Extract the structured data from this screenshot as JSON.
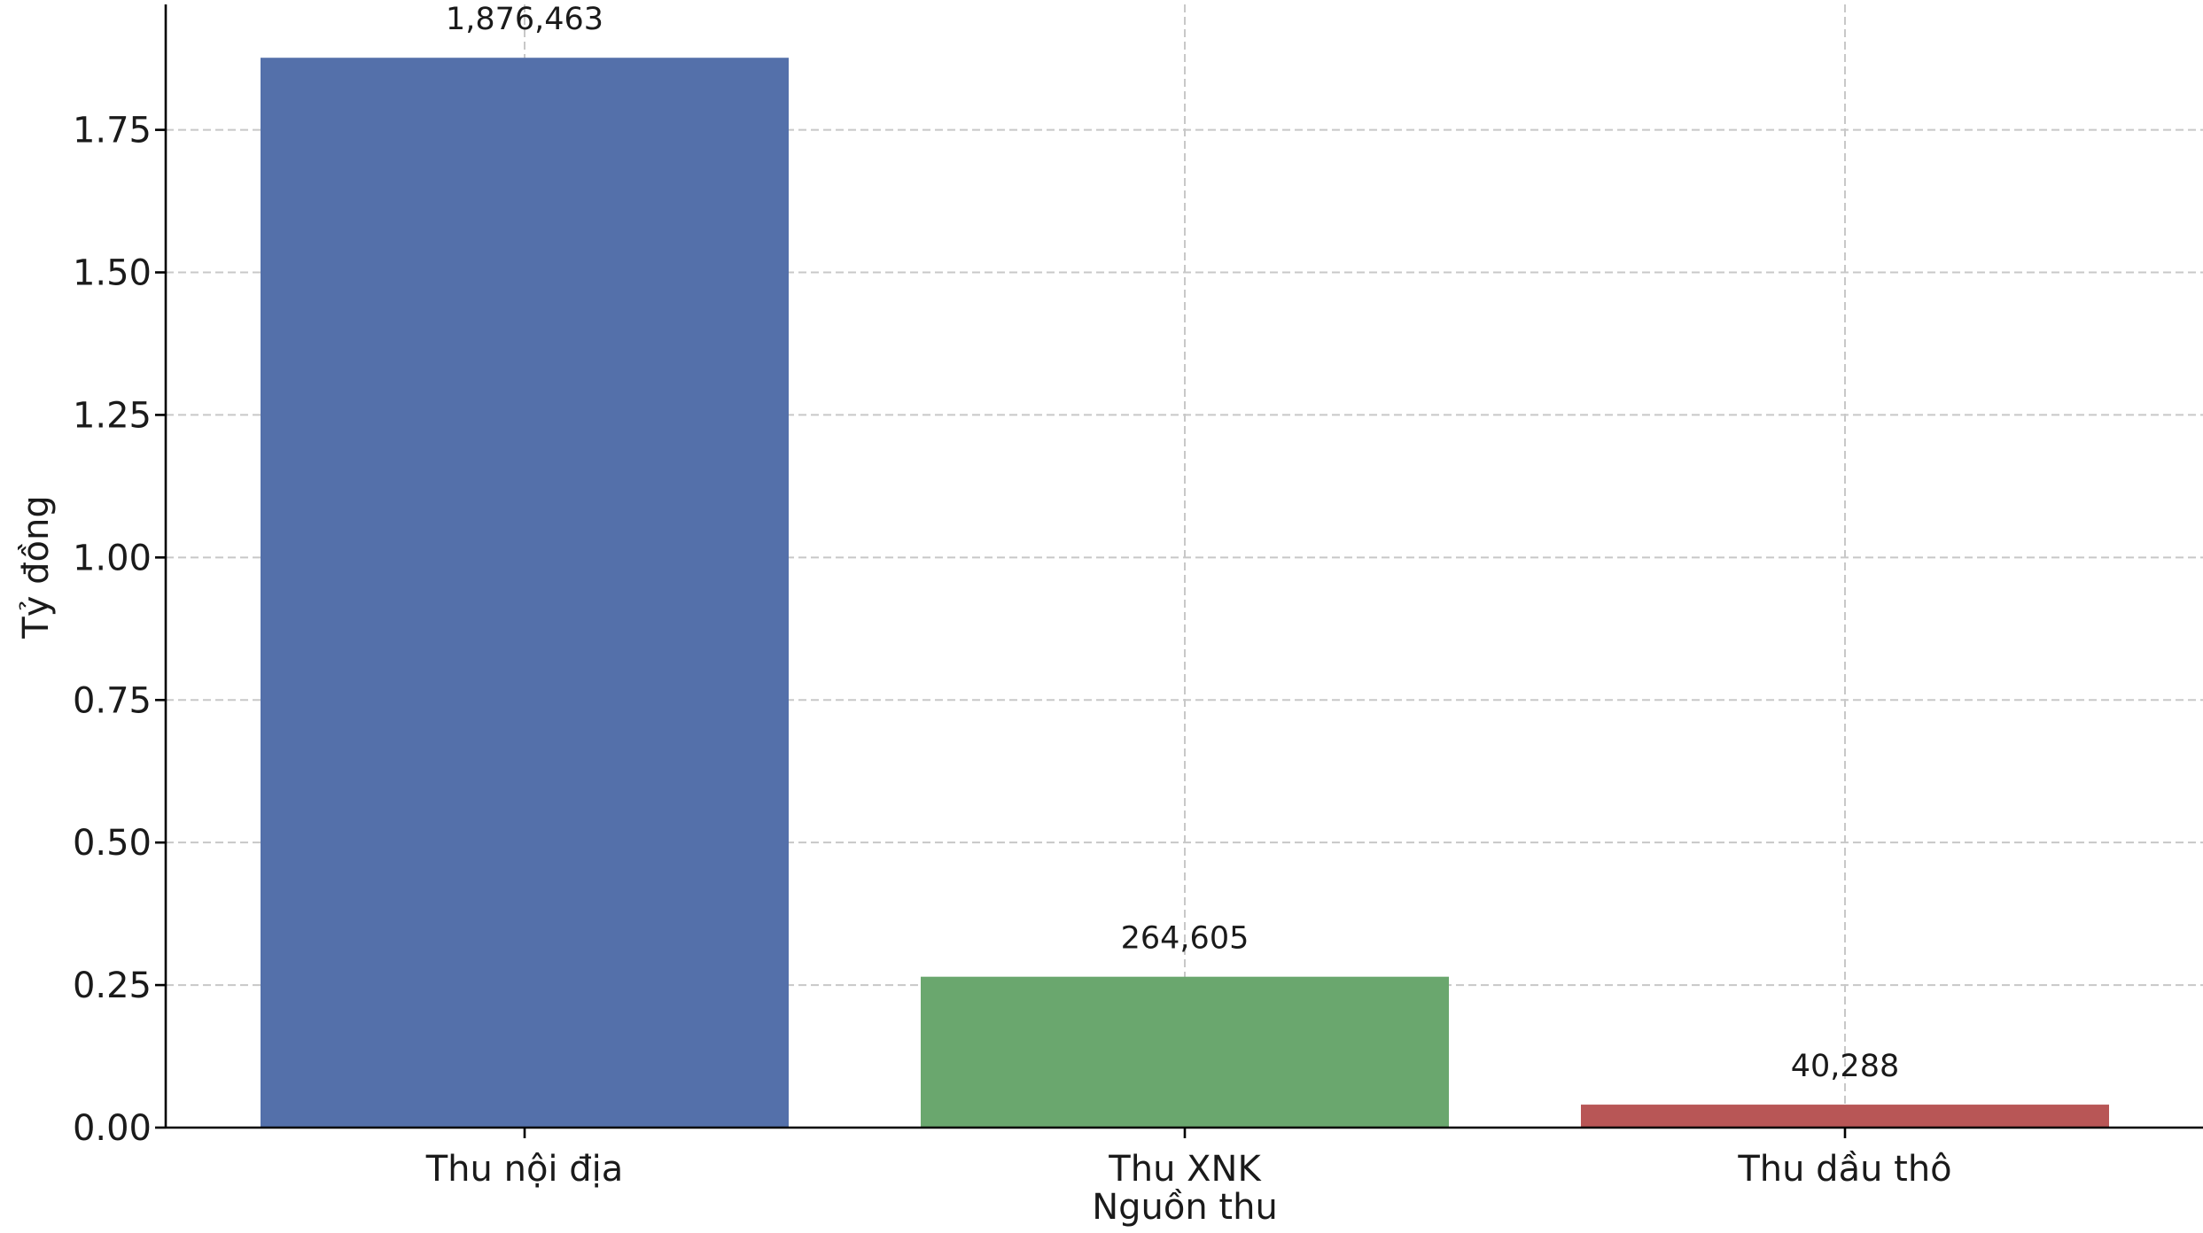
{
  "chart_data": {
    "type": "bar",
    "categories": [
      "Thu nội địa",
      "Thu XNK",
      "Thu dầu thô"
    ],
    "values": [
      1.876463,
      0.264605,
      0.040288
    ],
    "data_labels": [
      "1,876,463",
      "264,605",
      "40,288"
    ],
    "bar_colors": [
      "#5470aa",
      "#6aa76e",
      "#b85656"
    ],
    "title": "",
    "xlabel": "Nguồn thu",
    "ylabel": "Tỷ đồng",
    "ylim": [
      0,
      1.97
    ],
    "yticks": [
      0.0,
      0.25,
      0.5,
      0.75,
      1.0,
      1.25,
      1.5,
      1.75
    ],
    "ytick_labels": [
      "0.00",
      "0.25",
      "0.50",
      "0.75",
      "1.00",
      "1.25",
      "1.50",
      "1.75"
    ],
    "grid": true,
    "grid_style": "dashed",
    "legend": false
  }
}
